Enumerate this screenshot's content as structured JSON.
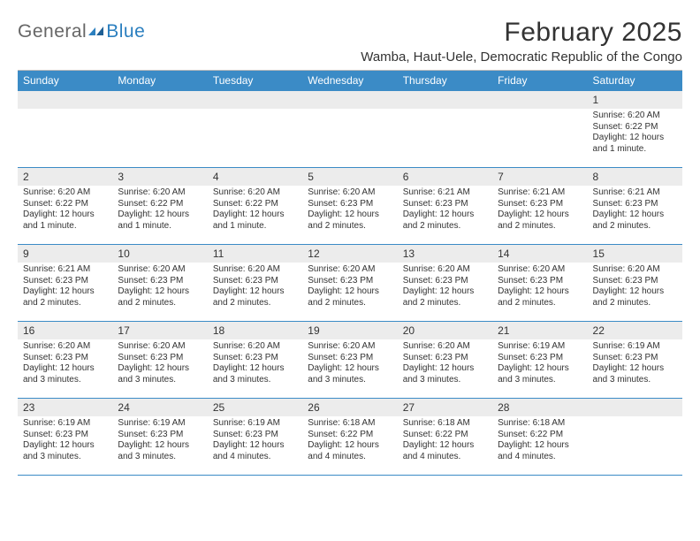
{
  "logo": {
    "text1": "General",
    "text2": "Blue"
  },
  "title": "February 2025",
  "location": "Wamba, Haut-Uele, Democratic Republic of the Congo",
  "colors": {
    "header_bg": "#3b8bc6",
    "header_text": "#ffffff",
    "cell_border": "#3b8bc6",
    "daynum_bg": "#ececec",
    "text": "#333333",
    "logo_gray": "#666666",
    "logo_blue": "#2b7fbf",
    "background": "#ffffff"
  },
  "typography": {
    "title_fontsize_pt": 22,
    "location_fontsize_pt": 11,
    "header_fontsize_pt": 9,
    "daynum_fontsize_pt": 9,
    "body_fontsize_pt": 7.5
  },
  "daysOfWeek": [
    "Sunday",
    "Monday",
    "Tuesday",
    "Wednesday",
    "Thursday",
    "Friday",
    "Saturday"
  ],
  "weeks": [
    [
      {
        "num": "",
        "text": ""
      },
      {
        "num": "",
        "text": ""
      },
      {
        "num": "",
        "text": ""
      },
      {
        "num": "",
        "text": ""
      },
      {
        "num": "",
        "text": ""
      },
      {
        "num": "",
        "text": ""
      },
      {
        "num": "1",
        "text": "Sunrise: 6:20 AM\nSunset: 6:22 PM\nDaylight: 12 hours and 1 minute."
      }
    ],
    [
      {
        "num": "2",
        "text": "Sunrise: 6:20 AM\nSunset: 6:22 PM\nDaylight: 12 hours and 1 minute."
      },
      {
        "num": "3",
        "text": "Sunrise: 6:20 AM\nSunset: 6:22 PM\nDaylight: 12 hours and 1 minute."
      },
      {
        "num": "4",
        "text": "Sunrise: 6:20 AM\nSunset: 6:22 PM\nDaylight: 12 hours and 1 minute."
      },
      {
        "num": "5",
        "text": "Sunrise: 6:20 AM\nSunset: 6:23 PM\nDaylight: 12 hours and 2 minutes."
      },
      {
        "num": "6",
        "text": "Sunrise: 6:21 AM\nSunset: 6:23 PM\nDaylight: 12 hours and 2 minutes."
      },
      {
        "num": "7",
        "text": "Sunrise: 6:21 AM\nSunset: 6:23 PM\nDaylight: 12 hours and 2 minutes."
      },
      {
        "num": "8",
        "text": "Sunrise: 6:21 AM\nSunset: 6:23 PM\nDaylight: 12 hours and 2 minutes."
      }
    ],
    [
      {
        "num": "9",
        "text": "Sunrise: 6:21 AM\nSunset: 6:23 PM\nDaylight: 12 hours and 2 minutes."
      },
      {
        "num": "10",
        "text": "Sunrise: 6:20 AM\nSunset: 6:23 PM\nDaylight: 12 hours and 2 minutes."
      },
      {
        "num": "11",
        "text": "Sunrise: 6:20 AM\nSunset: 6:23 PM\nDaylight: 12 hours and 2 minutes."
      },
      {
        "num": "12",
        "text": "Sunrise: 6:20 AM\nSunset: 6:23 PM\nDaylight: 12 hours and 2 minutes."
      },
      {
        "num": "13",
        "text": "Sunrise: 6:20 AM\nSunset: 6:23 PM\nDaylight: 12 hours and 2 minutes."
      },
      {
        "num": "14",
        "text": "Sunrise: 6:20 AM\nSunset: 6:23 PM\nDaylight: 12 hours and 2 minutes."
      },
      {
        "num": "15",
        "text": "Sunrise: 6:20 AM\nSunset: 6:23 PM\nDaylight: 12 hours and 2 minutes."
      }
    ],
    [
      {
        "num": "16",
        "text": "Sunrise: 6:20 AM\nSunset: 6:23 PM\nDaylight: 12 hours and 3 minutes."
      },
      {
        "num": "17",
        "text": "Sunrise: 6:20 AM\nSunset: 6:23 PM\nDaylight: 12 hours and 3 minutes."
      },
      {
        "num": "18",
        "text": "Sunrise: 6:20 AM\nSunset: 6:23 PM\nDaylight: 12 hours and 3 minutes."
      },
      {
        "num": "19",
        "text": "Sunrise: 6:20 AM\nSunset: 6:23 PM\nDaylight: 12 hours and 3 minutes."
      },
      {
        "num": "20",
        "text": "Sunrise: 6:20 AM\nSunset: 6:23 PM\nDaylight: 12 hours and 3 minutes."
      },
      {
        "num": "21",
        "text": "Sunrise: 6:19 AM\nSunset: 6:23 PM\nDaylight: 12 hours and 3 minutes."
      },
      {
        "num": "22",
        "text": "Sunrise: 6:19 AM\nSunset: 6:23 PM\nDaylight: 12 hours and 3 minutes."
      }
    ],
    [
      {
        "num": "23",
        "text": "Sunrise: 6:19 AM\nSunset: 6:23 PM\nDaylight: 12 hours and 3 minutes."
      },
      {
        "num": "24",
        "text": "Sunrise: 6:19 AM\nSunset: 6:23 PM\nDaylight: 12 hours and 3 minutes."
      },
      {
        "num": "25",
        "text": "Sunrise: 6:19 AM\nSunset: 6:23 PM\nDaylight: 12 hours and 4 minutes."
      },
      {
        "num": "26",
        "text": "Sunrise: 6:18 AM\nSunset: 6:22 PM\nDaylight: 12 hours and 4 minutes."
      },
      {
        "num": "27",
        "text": "Sunrise: 6:18 AM\nSunset: 6:22 PM\nDaylight: 12 hours and 4 minutes."
      },
      {
        "num": "28",
        "text": "Sunrise: 6:18 AM\nSunset: 6:22 PM\nDaylight: 12 hours and 4 minutes."
      },
      {
        "num": "",
        "text": ""
      }
    ]
  ]
}
